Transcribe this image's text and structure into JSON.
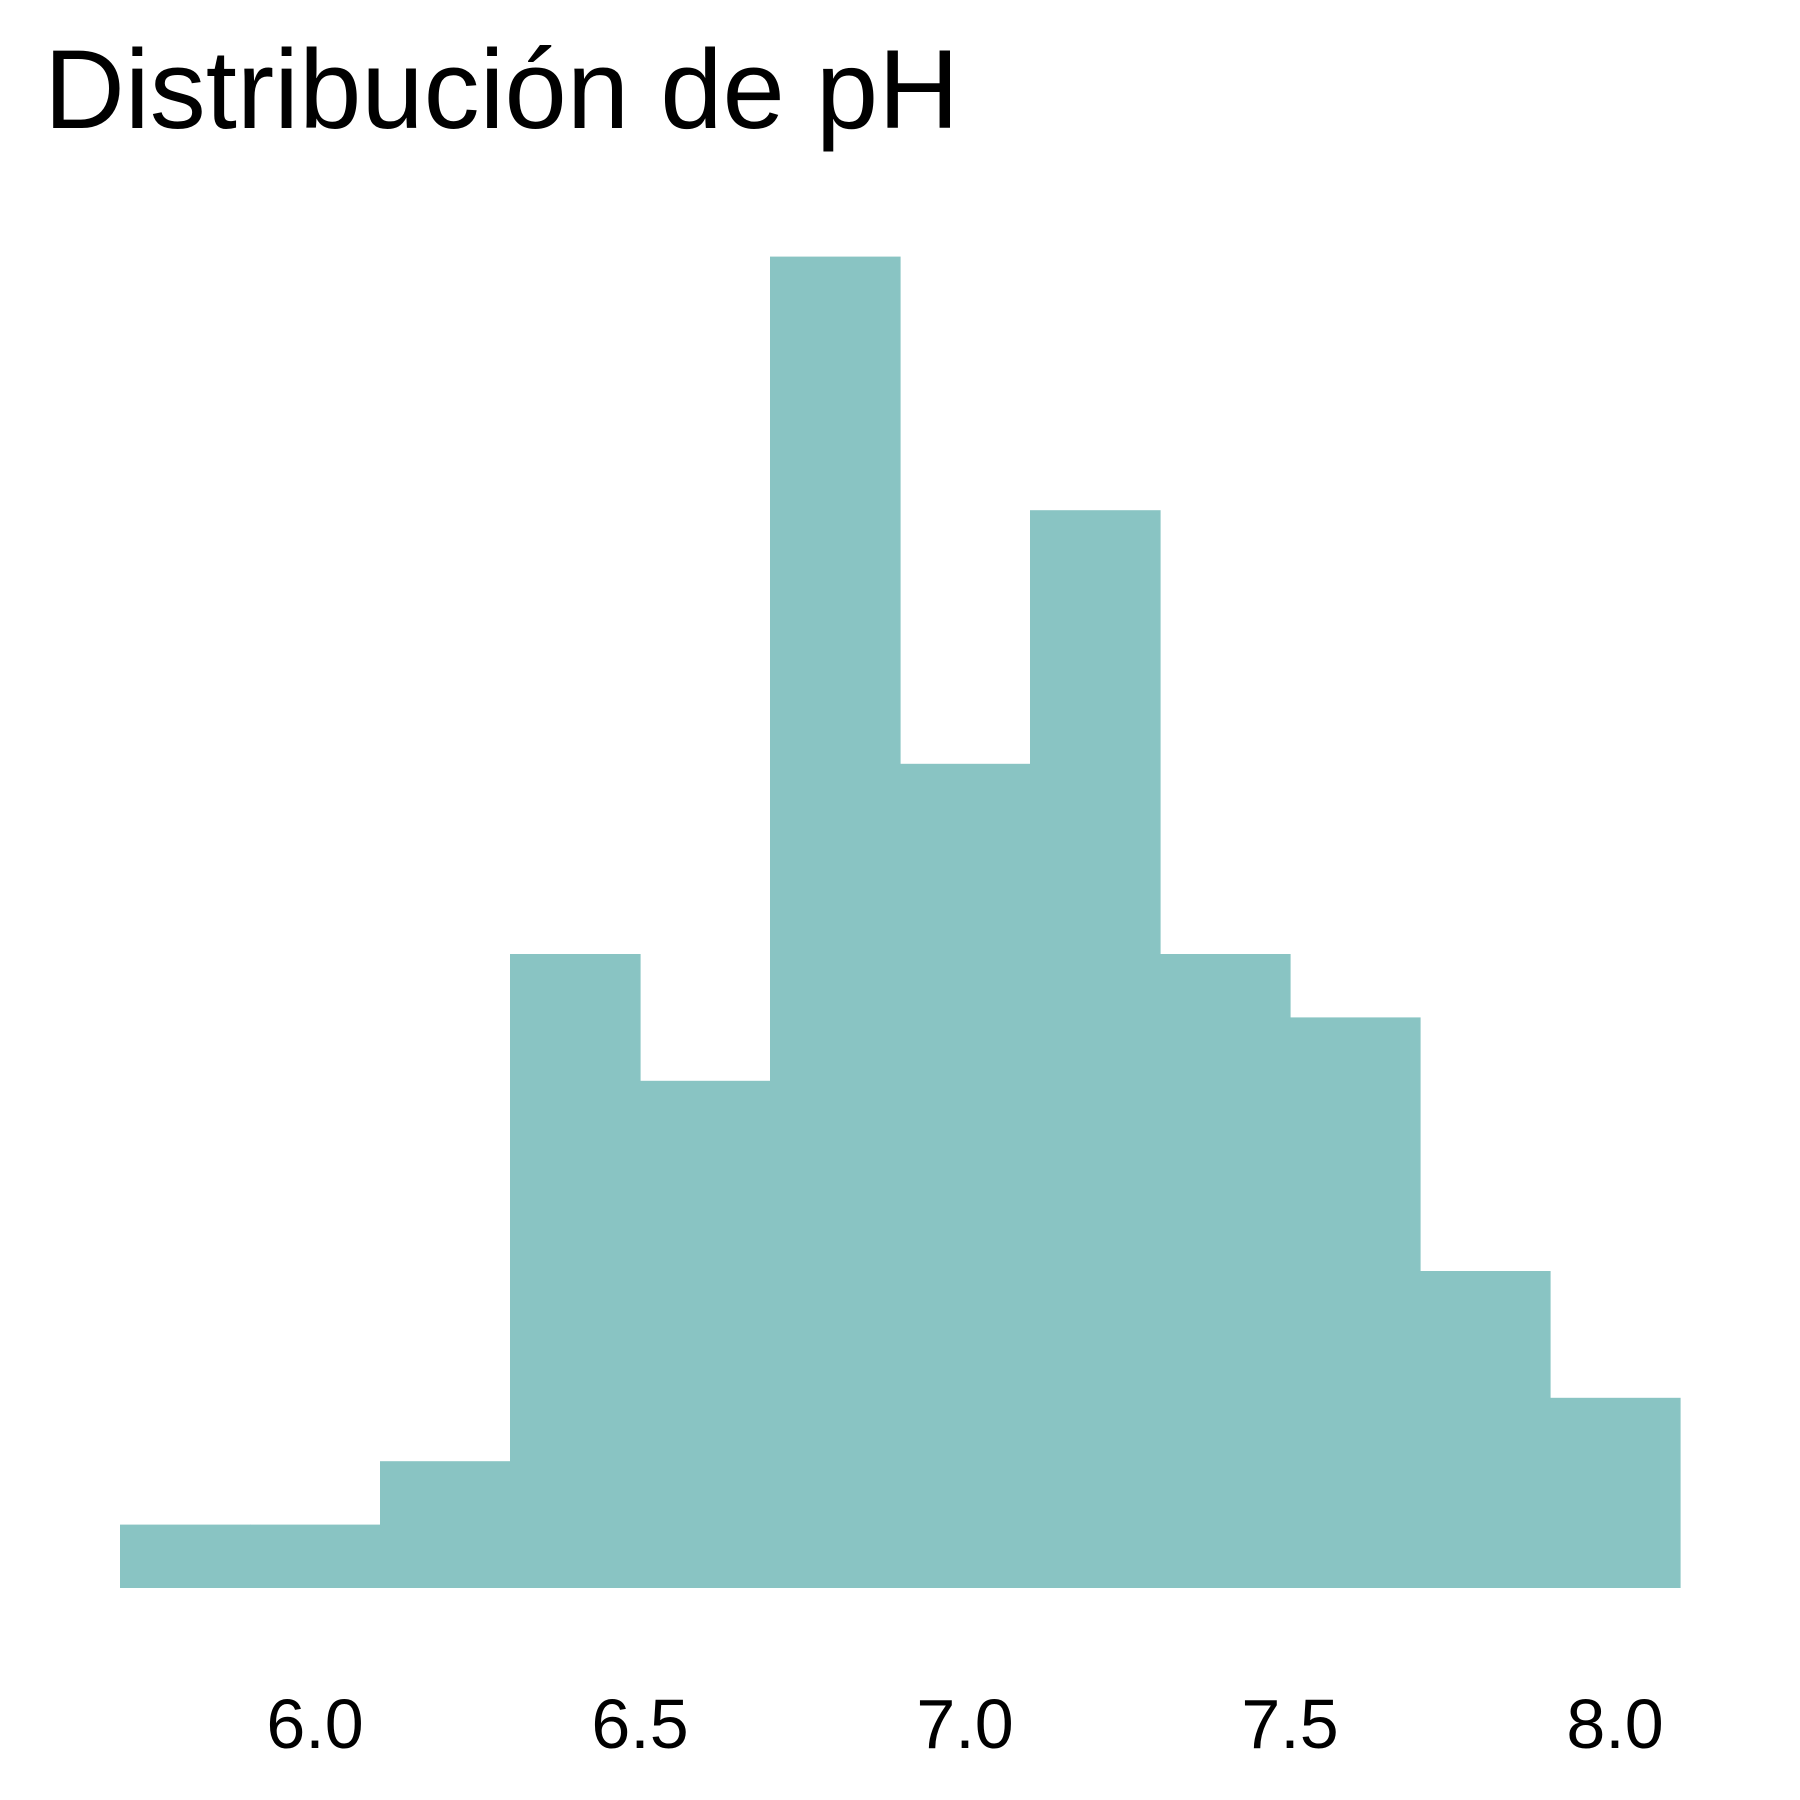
{
  "chart_data": {
    "type": "bar",
    "title": "Distribución de pH",
    "xlabel": "",
    "ylabel": "",
    "bar_color": "#89C4C3",
    "bin_width": 0.2,
    "bins": [
      {
        "x0": 5.7,
        "x1": 5.9,
        "count": 1
      },
      {
        "x0": 5.9,
        "x1": 6.1,
        "count": 1
      },
      {
        "x0": 6.1,
        "x1": 6.3,
        "count": 2
      },
      {
        "x0": 6.3,
        "x1": 6.5,
        "count": 10
      },
      {
        "x0": 6.5,
        "x1": 6.7,
        "count": 8
      },
      {
        "x0": 6.7,
        "x1": 6.9,
        "count": 21
      },
      {
        "x0": 6.9,
        "x1": 7.1,
        "count": 13
      },
      {
        "x0": 7.1,
        "x1": 7.3,
        "count": 17
      },
      {
        "x0": 7.3,
        "x1": 7.5,
        "count": 10
      },
      {
        "x0": 7.5,
        "x1": 7.7,
        "count": 9
      },
      {
        "x0": 7.7,
        "x1": 7.9,
        "count": 5
      },
      {
        "x0": 7.9,
        "x1": 8.1,
        "count": 3
      }
    ],
    "xlim": [
      5.6,
      8.2
    ],
    "ylim": [
      0,
      22
    ],
    "x_ticks": [
      6.0,
      6.5,
      7.0,
      7.5,
      8.0
    ],
    "x_tick_labels": [
      "6.0",
      "6.5",
      "7.0",
      "7.5",
      "8.0"
    ],
    "y_axis_visible": false,
    "grid": false,
    "legend": "none"
  }
}
